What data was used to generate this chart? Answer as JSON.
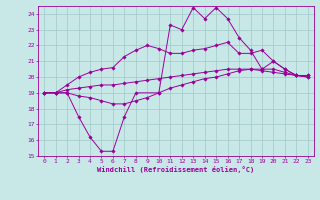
{
  "xlabel": "Windchill (Refroidissement éolien,°C)",
  "xlim": [
    -0.5,
    23.5
  ],
  "ylim": [
    15,
    24.5
  ],
  "yticks": [
    15,
    16,
    17,
    18,
    19,
    20,
    21,
    22,
    23,
    24
  ],
  "xticks": [
    0,
    1,
    2,
    3,
    4,
    5,
    6,
    7,
    8,
    9,
    10,
    11,
    12,
    13,
    14,
    15,
    16,
    17,
    18,
    19,
    20,
    21,
    22,
    23
  ],
  "background_color": "#c8e8e8",
  "grid_color": "#a0c8c8",
  "line_color": "#990099",
  "lines": [
    {
      "x": [
        0,
        1,
        2,
        3,
        4,
        5,
        6,
        7,
        8,
        10,
        11,
        12,
        13,
        14,
        15,
        16,
        17,
        18,
        19,
        20,
        21,
        22,
        23
      ],
      "y": [
        19,
        19,
        19,
        17.5,
        16.2,
        15.3,
        15.3,
        17.5,
        19,
        19,
        23.3,
        23.0,
        24.4,
        23.7,
        24.4,
        23.7,
        22.5,
        21.7,
        20.5,
        21.0,
        20.5,
        20.1,
        20.1
      ]
    },
    {
      "x": [
        0,
        1,
        2,
        3,
        4,
        5,
        6,
        7,
        8,
        9,
        10,
        11,
        12,
        13,
        14,
        15,
        16,
        17,
        18,
        19,
        20,
        21,
        22,
        23
      ],
      "y": [
        19,
        19,
        19.5,
        20.0,
        20.3,
        20.5,
        20.6,
        21.3,
        21.7,
        22.0,
        21.8,
        21.5,
        21.5,
        21.7,
        21.8,
        22.0,
        22.2,
        21.5,
        21.5,
        21.7,
        21.0,
        20.5,
        20.1,
        20.1
      ]
    },
    {
      "x": [
        0,
        1,
        2,
        3,
        4,
        5,
        6,
        7,
        8,
        9,
        10,
        11,
        12,
        13,
        14,
        15,
        16,
        17,
        18,
        19,
        20,
        21,
        22,
        23
      ],
      "y": [
        19,
        19,
        19.2,
        19.3,
        19.4,
        19.5,
        19.5,
        19.6,
        19.7,
        19.8,
        19.9,
        20.0,
        20.1,
        20.2,
        20.3,
        20.4,
        20.5,
        20.5,
        20.5,
        20.4,
        20.3,
        20.2,
        20.1,
        20.0
      ]
    },
    {
      "x": [
        0,
        1,
        2,
        3,
        4,
        5,
        6,
        7,
        8,
        9,
        10,
        11,
        12,
        13,
        14,
        15,
        16,
        17,
        18,
        19,
        20,
        21,
        22,
        23
      ],
      "y": [
        19,
        19,
        19.0,
        18.8,
        18.7,
        18.5,
        18.3,
        18.3,
        18.5,
        18.7,
        19.0,
        19.3,
        19.5,
        19.7,
        19.9,
        20.0,
        20.2,
        20.4,
        20.5,
        20.5,
        20.5,
        20.3,
        20.1,
        20.0
      ]
    }
  ]
}
